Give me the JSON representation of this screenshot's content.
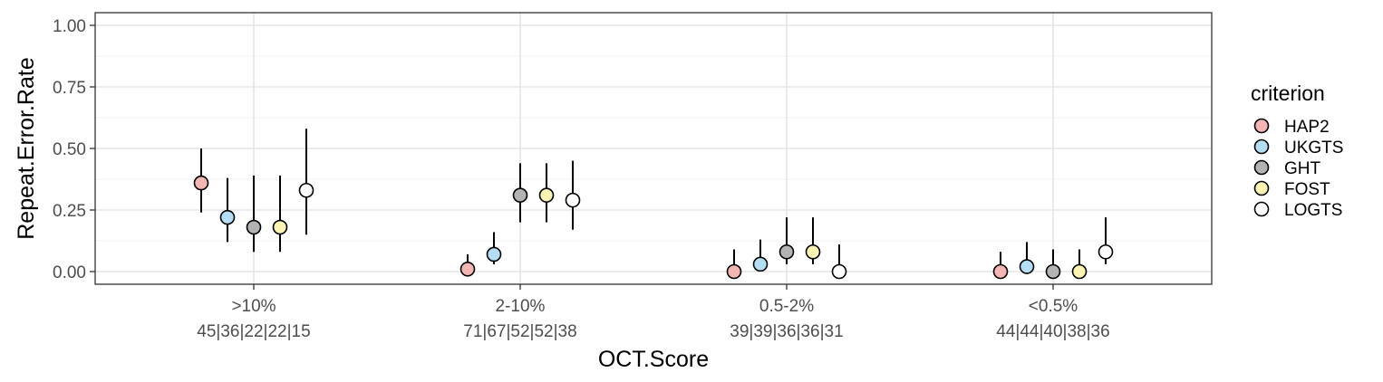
{
  "chart_data": {
    "type": "scatter",
    "xlabel": "OCT.Score",
    "ylabel": "Repeat.Error.Rate",
    "ylim": [
      0,
      1
    ],
    "yticks": [
      "0.00",
      "0.25",
      "0.50",
      "0.75",
      "1.00"
    ],
    "grid": true,
    "legend_position": "right",
    "legend_title": "criterion",
    "categories": [
      {
        "label": ">10%",
        "counts": "45|36|22|22|15"
      },
      {
        "label": "2-10%",
        "counts": "71|67|52|52|38"
      },
      {
        "label": "0.5-2%",
        "counts": "39|39|36|36|31"
      },
      {
        "label": "<0.5%",
        "counts": "44|44|40|38|36"
      }
    ],
    "series": [
      {
        "name": "HAP2",
        "color": "#f4b6b2",
        "values": [
          0.36,
          0.01,
          0.0,
          0.0
        ],
        "lower": [
          0.24,
          0.0,
          0.0,
          0.0
        ],
        "upper": [
          0.5,
          0.07,
          0.09,
          0.08
        ]
      },
      {
        "name": "UKGTS",
        "color": "#b5def5",
        "values": [
          0.22,
          0.07,
          0.03,
          0.02
        ],
        "lower": [
          0.12,
          0.03,
          0.0,
          0.0
        ],
        "upper": [
          0.38,
          0.16,
          0.13,
          0.12
        ]
      },
      {
        "name": "GHT",
        "color": "#b3b3b3",
        "values": [
          0.18,
          0.31,
          0.08,
          0.0
        ],
        "lower": [
          0.08,
          0.2,
          0.03,
          0.0
        ],
        "upper": [
          0.39,
          0.44,
          0.22,
          0.09
        ]
      },
      {
        "name": "FOST",
        "color": "#fbf4b4",
        "values": [
          0.18,
          0.31,
          0.08,
          0.0
        ],
        "lower": [
          0.08,
          0.2,
          0.03,
          0.0
        ],
        "upper": [
          0.39,
          0.44,
          0.22,
          0.09
        ]
      },
      {
        "name": "LOGTS",
        "color": "#ffffff",
        "values": [
          0.33,
          0.29,
          0.0,
          0.08
        ],
        "lower": [
          0.15,
          0.17,
          0.0,
          0.03
        ],
        "upper": [
          0.58,
          0.45,
          0.11,
          0.22
        ]
      }
    ]
  }
}
